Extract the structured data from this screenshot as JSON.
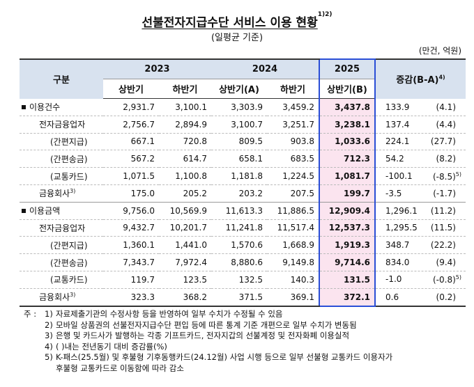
{
  "title": "선불전자지급수단 서비스 이용 현황",
  "title_sup": "1)2)",
  "subtitle": "(일평균 기준)",
  "unit": "(만건, 억원)",
  "headers": {
    "category": "구분",
    "y2023": "2023",
    "y2024": "2024",
    "y2025": "2025",
    "change": "증감(B-A)",
    "change_sup": "4)",
    "h1": "상반기",
    "h2": "하반기",
    "h3": "상반기(A)",
    "h4": "하반기",
    "h5": "상반기(B)"
  },
  "rows": [
    {
      "label": "이용건수",
      "sup": "",
      "v": [
        "2,931.7",
        "3,100.1",
        "3,303.9",
        "3,459.2",
        "3,437.8"
      ],
      "d": "133.9",
      "p": "(4.1)",
      "psup": ""
    },
    {
      "label": "전자금융업자",
      "sup": "",
      "v": [
        "2,756.7",
        "2,894.9",
        "3,100.7",
        "3,251.7",
        "3,238.1"
      ],
      "d": "137.4",
      "p": "(4.4)",
      "psup": ""
    },
    {
      "label": "(간편지급)",
      "sup": "",
      "v": [
        "667.1",
        "720.8",
        "809.5",
        "903.8",
        "1,033.6"
      ],
      "d": "224.1",
      "p": "(27.7)",
      "psup": ""
    },
    {
      "label": "(간편송금)",
      "sup": "",
      "v": [
        "567.2",
        "614.7",
        "658.1",
        "683.5",
        "712.3"
      ],
      "d": "54.2",
      "p": "(8.2)",
      "psup": ""
    },
    {
      "label": "(교통카드)",
      "sup": "",
      "v": [
        "1,071.5",
        "1,100.8",
        "1,181.8",
        "1,224.5",
        "1,081.7"
      ],
      "d": "-100.1",
      "p": "(-8.5)",
      "psup": "5)"
    },
    {
      "label": "금융회사",
      "sup": "3)",
      "v": [
        "175.0",
        "205.2",
        "203.2",
        "207.5",
        "199.7"
      ],
      "d": "-3.5",
      "p": "(-1.7)",
      "psup": ""
    },
    {
      "label": "이용금액",
      "sup": "",
      "v": [
        "9,756.0",
        "10,569.9",
        "11,613.3",
        "11,886.5",
        "12,909.4"
      ],
      "d": "1,296.1",
      "p": "(11.2)",
      "psup": ""
    },
    {
      "label": "전자금융업자",
      "sup": "",
      "v": [
        "9,432.7",
        "10,201.7",
        "11,241.8",
        "11,517.4",
        "12,537.3"
      ],
      "d": "1,295.5",
      "p": "(11.5)",
      "psup": ""
    },
    {
      "label": "(간편지급)",
      "sup": "",
      "v": [
        "1,360.1",
        "1,441.0",
        "1,570.6",
        "1,668.9",
        "1,919.3"
      ],
      "d": "348.7",
      "p": "(22.2)",
      "psup": ""
    },
    {
      "label": "(간편송금)",
      "sup": "",
      "v": [
        "7,343.7",
        "7,972.4",
        "8,880.6",
        "9,149.8",
        "9,714.6"
      ],
      "d": "834.0",
      "p": "(9.4)",
      "psup": ""
    },
    {
      "label": "(교통카드)",
      "sup": "",
      "v": [
        "119.7",
        "123.5",
        "132.5",
        "140.3",
        "131.5"
      ],
      "d": "-1.0",
      "p": "(-0.8)",
      "psup": "5)"
    },
    {
      "label": "금융회사",
      "sup": "3)",
      "v": [
        "323.3",
        "368.2",
        "371.5",
        "369.1",
        "372.1"
      ],
      "d": "0.6",
      "p": "(0.2)",
      "psup": ""
    }
  ],
  "notes": {
    "prefix": "주 :",
    "items": [
      {
        "n": "1)",
        "t": "자료제출기관의 수정사항 등을 반영하여 일부 수치가 수정될 수 있음"
      },
      {
        "n": "2)",
        "t": "모바일 상품권의 선불전자지급수단 편입 등에 따른 통계 기준 개편으로 일부 수치가 변동됨"
      },
      {
        "n": "3)",
        "t": "은행 및 카드사가 발행하는 각종 기프트카드, 전자지갑의 선불계정 및 전자화폐 이용실적"
      },
      {
        "n": "4)",
        "t": "(  )내는 전년동기 대비 증감률(%)"
      },
      {
        "n": "5)",
        "t": "K-패스(25.5월) 및 후불형 기후동행카드(24.12월) 사업 시행 등으로 일부 선불형 교통카드 이용자가"
      },
      {
        "n": "",
        "t": "후불형 교통카드로 이동함에 따라 감소"
      }
    ]
  }
}
